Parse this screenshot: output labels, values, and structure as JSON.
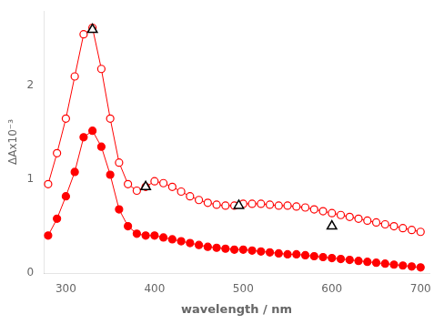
{
  "chart_data": {
    "type": "line",
    "xlabel": "wavelength / nm",
    "ylabel": "ΔAx10⁻³",
    "xlim": [
      275,
      710
    ],
    "ylim": [
      0,
      2.8
    ],
    "xticks": [
      300,
      400,
      500,
      600,
      700
    ],
    "yticks": [
      0,
      1,
      2
    ],
    "grid": false,
    "series": [
      {
        "color": "#ff0000",
        "marker": "open_circle",
        "line_style": "solid",
        "x": [
          280,
          290,
          300,
          310,
          320,
          330,
          340,
          350,
          360,
          370,
          380,
          390,
          400,
          410,
          420,
          430,
          440,
          450,
          460,
          470,
          480,
          490,
          500,
          510,
          520,
          530,
          540,
          550,
          560,
          570,
          580,
          590,
          600,
          610,
          620,
          630,
          640,
          650,
          660,
          670,
          680,
          690,
          700
        ],
        "values": [
          0.95,
          1.28,
          1.65,
          2.1,
          2.55,
          2.62,
          2.18,
          1.65,
          1.18,
          0.95,
          0.88,
          0.92,
          0.98,
          0.96,
          0.92,
          0.87,
          0.82,
          0.78,
          0.75,
          0.73,
          0.72,
          0.72,
          0.74,
          0.74,
          0.74,
          0.73,
          0.72,
          0.72,
          0.71,
          0.7,
          0.68,
          0.66,
          0.64,
          0.62,
          0.6,
          0.58,
          0.56,
          0.54,
          0.52,
          0.5,
          0.48,
          0.46,
          0.44
        ]
      },
      {
        "color": "#ff0000",
        "marker": "circle",
        "line_style": "solid",
        "x": [
          280,
          290,
          300,
          310,
          320,
          330,
          340,
          350,
          360,
          370,
          380,
          390,
          400,
          410,
          420,
          430,
          440,
          450,
          460,
          470,
          480,
          490,
          500,
          510,
          520,
          530,
          540,
          550,
          560,
          570,
          580,
          590,
          600,
          610,
          620,
          630,
          640,
          650,
          660,
          670,
          680,
          690,
          700
        ],
        "values": [
          0.4,
          0.58,
          0.82,
          1.08,
          1.45,
          1.52,
          1.35,
          1.05,
          0.68,
          0.5,
          0.42,
          0.4,
          0.4,
          0.38,
          0.36,
          0.34,
          0.32,
          0.3,
          0.28,
          0.27,
          0.26,
          0.25,
          0.25,
          0.24,
          0.23,
          0.22,
          0.21,
          0.2,
          0.2,
          0.19,
          0.18,
          0.17,
          0.16,
          0.15,
          0.14,
          0.13,
          0.12,
          0.11,
          0.1,
          0.09,
          0.08,
          0.07,
          0.06
        ]
      },
      {
        "color": "black",
        "marker": "open_triangle",
        "line_style": "none",
        "x": [
          330,
          390,
          495,
          600
        ],
        "values": [
          2.6,
          0.92,
          0.72,
          0.5
        ]
      }
    ]
  }
}
